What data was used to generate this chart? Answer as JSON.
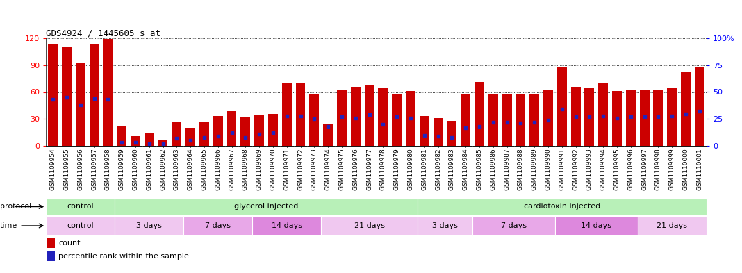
{
  "title": "GDS4924 / 1445605_s_at",
  "samples": [
    "GSM1109954",
    "GSM1109955",
    "GSM1109956",
    "GSM1109957",
    "GSM1109958",
    "GSM1109959",
    "GSM1109960",
    "GSM1109961",
    "GSM1109962",
    "GSM1109963",
    "GSM1109964",
    "GSM1109965",
    "GSM1109966",
    "GSM1109967",
    "GSM1109968",
    "GSM1109969",
    "GSM1109970",
    "GSM1109971",
    "GSM1109972",
    "GSM1109973",
    "GSM1109974",
    "GSM1109975",
    "GSM1109976",
    "GSM1109977",
    "GSM1109978",
    "GSM1109979",
    "GSM1109980",
    "GSM1109981",
    "GSM1109982",
    "GSM1109983",
    "GSM1109984",
    "GSM1109985",
    "GSM1109986",
    "GSM1109987",
    "GSM1109988",
    "GSM1109989",
    "GSM1109990",
    "GSM1109991",
    "GSM1109992",
    "GSM1109993",
    "GSM1109994",
    "GSM1109995",
    "GSM1109996",
    "GSM1109997",
    "GSM1109998",
    "GSM1109999",
    "GSM1110000",
    "GSM1110001"
  ],
  "counts": [
    113,
    110,
    93,
    113,
    119,
    22,
    11,
    14,
    7,
    26,
    20,
    27,
    33,
    39,
    32,
    35,
    36,
    70,
    70,
    57,
    24,
    63,
    66,
    67,
    65,
    58,
    61,
    33,
    31,
    28,
    57,
    71,
    58,
    58,
    57,
    58,
    63,
    88,
    66,
    64,
    70,
    61,
    62,
    62,
    62,
    65,
    83,
    88
  ],
  "percentiles": [
    43,
    45,
    38,
    44,
    43,
    3,
    3,
    2,
    2,
    7,
    5,
    8,
    9,
    12,
    8,
    11,
    12,
    28,
    28,
    25,
    18,
    27,
    26,
    29,
    20,
    27,
    26,
    10,
    9,
    8,
    17,
    18,
    22,
    22,
    21,
    22,
    24,
    34,
    27,
    27,
    28,
    26,
    27,
    27,
    27,
    28,
    30,
    32
  ],
  "bar_color": "#cc0000",
  "marker_color": "#2222bb",
  "ylim_left": [
    0,
    120
  ],
  "ylim_right": [
    0,
    100
  ],
  "yticks_left": [
    0,
    30,
    60,
    90,
    120
  ],
  "yticks_right": [
    0,
    25,
    50,
    75,
    100
  ],
  "ytick_labels_right": [
    "0",
    "25",
    "50",
    "75",
    "100%"
  ],
  "protocol_groups": [
    {
      "label": "control",
      "start": 0,
      "end": 5,
      "color": "#b8f0b8"
    },
    {
      "label": "glycerol injected",
      "start": 5,
      "end": 27,
      "color": "#b8f0b8"
    },
    {
      "label": "cardiotoxin injected",
      "start": 27,
      "end": 48,
      "color": "#b8f0b8"
    }
  ],
  "time_groups": [
    {
      "label": "control",
      "start": 0,
      "end": 5,
      "color": "#f0c8f0"
    },
    {
      "label": "3 days",
      "start": 5,
      "end": 10,
      "color": "#f0c8f0"
    },
    {
      "label": "7 days",
      "start": 10,
      "end": 15,
      "color": "#e8a8e8"
    },
    {
      "label": "14 days",
      "start": 15,
      "end": 20,
      "color": "#dd88dd"
    },
    {
      "label": "21 days",
      "start": 20,
      "end": 27,
      "color": "#f0c8f0"
    },
    {
      "label": "3 days",
      "start": 27,
      "end": 31,
      "color": "#f0c8f0"
    },
    {
      "label": "7 days",
      "start": 31,
      "end": 37,
      "color": "#e8a8e8"
    },
    {
      "label": "14 days",
      "start": 37,
      "end": 43,
      "color": "#dd88dd"
    },
    {
      "label": "21 days",
      "start": 43,
      "end": 48,
      "color": "#f0c8f0"
    }
  ],
  "bg_color": "#ffffff",
  "xtick_bg_color": "#cccccc",
  "bar_width": 0.7,
  "tick_fontsize": 6.5,
  "title_fontsize": 9,
  "legend_items": [
    {
      "color": "#cc0000",
      "label": "count"
    },
    {
      "color": "#2222bb",
      "label": "percentile rank within the sample"
    }
  ]
}
